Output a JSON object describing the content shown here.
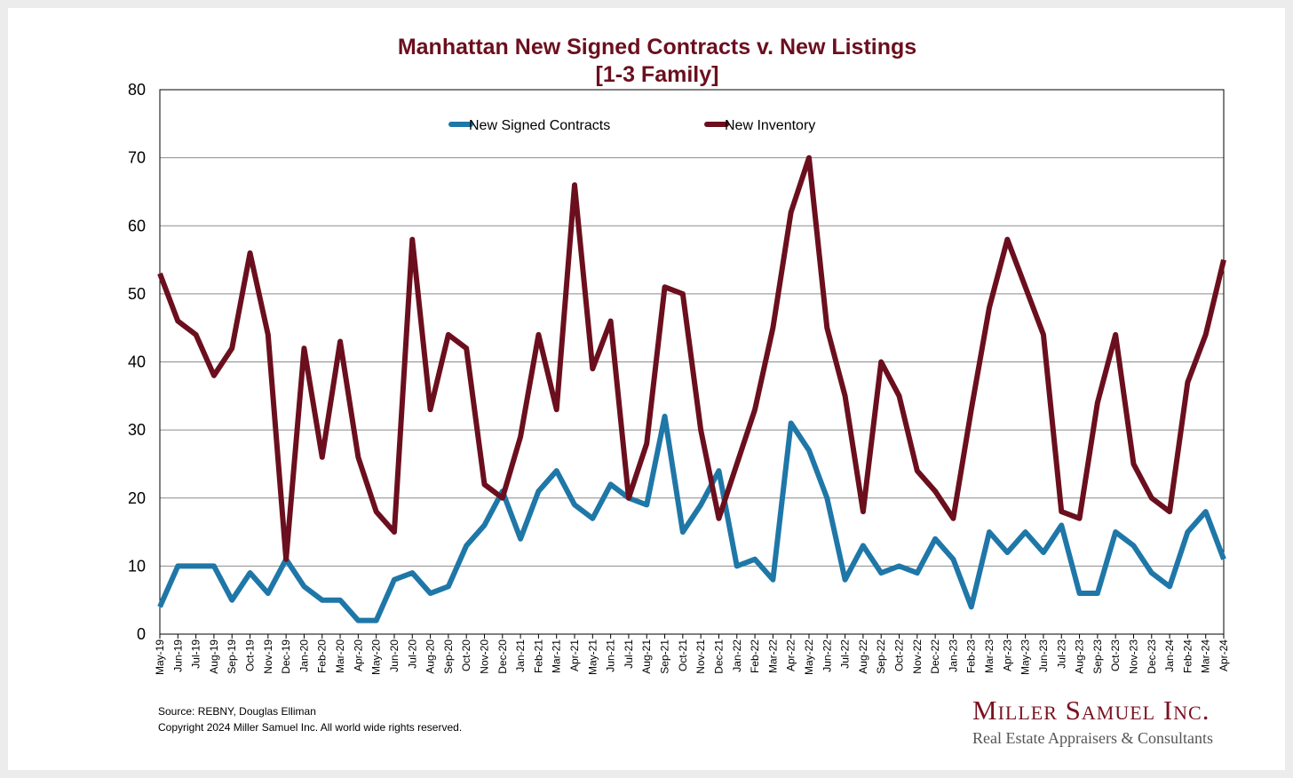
{
  "chart_data": {
    "type": "line",
    "title": "Manhattan New Signed Contracts v. New Listings",
    "subtitle": "[1-3 Family]",
    "xlabel": "",
    "ylabel": "",
    "ylim": [
      0,
      80
    ],
    "yticks": [
      0,
      10,
      20,
      30,
      40,
      50,
      60,
      70,
      80
    ],
    "grid": true,
    "legend_position": "top-center",
    "categories": [
      "May-19",
      "Jun-19",
      "Jul-19",
      "Aug-19",
      "Sep-19",
      "Oct-19",
      "Nov-19",
      "Dec-19",
      "Jan-20",
      "Feb-20",
      "Mar-20",
      "Apr-20",
      "May-20",
      "Jun-20",
      "Jul-20",
      "Aug-20",
      "Sep-20",
      "Oct-20",
      "Nov-20",
      "Dec-20",
      "Jan-21",
      "Feb-21",
      "Mar-21",
      "Apr-21",
      "May-21",
      "Jun-21",
      "Jul-21",
      "Aug-21",
      "Sep-21",
      "Oct-21",
      "Nov-21",
      "Dec-21",
      "Jan-22",
      "Feb-22",
      "Mar-22",
      "Apr-22",
      "May-22",
      "Jun-22",
      "Jul-22",
      "Aug-22",
      "Sep-22",
      "Oct-22",
      "Nov-22",
      "Dec-22",
      "Jan-23",
      "Feb-23",
      "Mar-23",
      "Apr-23",
      "May-23",
      "Jun-23",
      "Jul-23",
      "Aug-23",
      "Sep-23",
      "Oct-23",
      "Nov-23",
      "Dec-23",
      "Jan-24",
      "Feb-24",
      "Mar-24",
      "Apr-24"
    ],
    "series": [
      {
        "name": "New Signed Contracts",
        "color": "#1f77a8",
        "values": [
          4,
          10,
          10,
          10,
          5,
          9,
          6,
          11,
          7,
          5,
          5,
          2,
          2,
          8,
          9,
          6,
          7,
          13,
          16,
          21,
          14,
          21,
          24,
          19,
          17,
          22,
          20,
          19,
          32,
          15,
          19,
          24,
          10,
          11,
          8,
          31,
          27,
          20,
          8,
          13,
          9,
          10,
          9,
          14,
          11,
          4,
          15,
          12,
          15,
          12,
          16,
          6,
          6,
          15,
          13,
          9,
          7,
          15,
          18,
          11
        ]
      },
      {
        "name": "New Inventory",
        "color": "#6b0f1e",
        "values": [
          53,
          46,
          44,
          38,
          42,
          56,
          44,
          11,
          42,
          26,
          43,
          26,
          18,
          15,
          58,
          33,
          44,
          42,
          22,
          20,
          29,
          44,
          33,
          66,
          39,
          46,
          20,
          28,
          51,
          50,
          30,
          17,
          25,
          33,
          45,
          62,
          70,
          45,
          35,
          18,
          40,
          35,
          24,
          21,
          17,
          33,
          48,
          58,
          51,
          44,
          18,
          17,
          34,
          44,
          25,
          20,
          18,
          37,
          44,
          55
        ]
      }
    ],
    "source_text": "Source: REBNY, Douglas Elliman",
    "copyright_text": "Copyright 2024 Miller Samuel Inc.  All world wide rights reserved.",
    "brand_name": "Miller Samuel Inc.",
    "brand_tagline": "Real Estate Appraisers & Consultants"
  }
}
